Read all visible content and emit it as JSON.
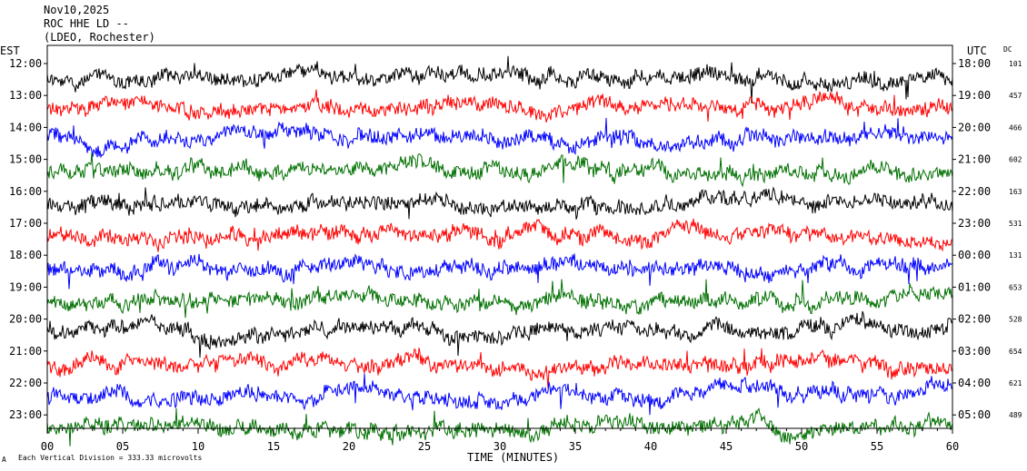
{
  "header": {
    "date": "Nov10,2025",
    "channel": "ROC HHE LD --",
    "network": "(LDEO, Rochester)"
  },
  "footer": {
    "scale_note": "Each Vertical Division = 333.33 microvolts",
    "glyph": "A"
  },
  "chart_data": {
    "type": "line",
    "title": "",
    "xlabel": "TIME (MINUTES)",
    "left_axis_label": "EST",
    "right_axis_label": "UTC",
    "dc_label": "DC",
    "xlim": [
      0,
      60
    ],
    "x_ticks": [
      "00",
      "05",
      "10",
      "15",
      "20",
      "25",
      "30",
      "35",
      "40",
      "45",
      "50",
      "55",
      "60"
    ],
    "trace_colors": [
      "#000000",
      "#ff0000",
      "#0000ff",
      "#007000"
    ],
    "rows": [
      {
        "est": "12:00",
        "utc": "18:00",
        "dc": "101",
        "color": "#000000"
      },
      {
        "est": "13:00",
        "utc": "19:00",
        "dc": "457",
        "color": "#ff0000"
      },
      {
        "est": "14:00",
        "utc": "20:00",
        "dc": "466",
        "color": "#0000ff"
      },
      {
        "est": "15:00",
        "utc": "21:00",
        "dc": "602",
        "color": "#007000"
      },
      {
        "est": "16:00",
        "utc": "22:00",
        "dc": "163",
        "color": "#000000"
      },
      {
        "est": "17:00",
        "utc": "23:00",
        "dc": "531",
        "color": "#ff0000"
      },
      {
        "est": "18:00",
        "utc": "00:00",
        "dc": "131",
        "color": "#0000ff"
      },
      {
        "est": "19:00",
        "utc": "01:00",
        "dc": "653",
        "color": "#007000"
      },
      {
        "est": "20:00",
        "utc": "02:00",
        "dc": "528",
        "color": "#000000"
      },
      {
        "est": "21:00",
        "utc": "03:00",
        "dc": "654",
        "color": "#ff0000"
      },
      {
        "est": "22:00",
        "utc": "04:00",
        "dc": "621",
        "color": "#0000ff"
      },
      {
        "est": "23:00",
        "utc": "05:00",
        "dc": "489",
        "color": "#007000"
      }
    ]
  }
}
